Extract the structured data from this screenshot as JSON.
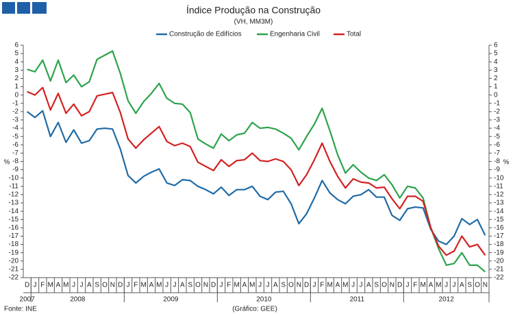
{
  "chart_data": {
    "type": "line",
    "title": "Índice Produção na Construção",
    "subtitle": "(VH, MM3M)",
    "ylabel": "%",
    "source": "Fonte: INE",
    "credit": "(Gráfico: GEE)",
    "categories": [
      "D",
      "J",
      "F",
      "M",
      "A",
      "M",
      "J",
      "J",
      "A",
      "S",
      "O",
      "N",
      "D",
      "J",
      "F",
      "M",
      "A",
      "M",
      "J",
      "J",
      "A",
      "S",
      "O",
      "N",
      "D",
      "J",
      "F",
      "M",
      "A",
      "M",
      "J",
      "J",
      "A",
      "S",
      "O",
      "N",
      "D",
      "J",
      "F",
      "M",
      "A",
      "M",
      "J",
      "J",
      "A",
      "S",
      "O",
      "N",
      "D",
      "J",
      "F",
      "M",
      "A",
      "M",
      "J",
      "J",
      "A",
      "S",
      "O",
      "N"
    ],
    "category_groups": [
      {
        "label": "2007",
        "size": 1
      },
      {
        "label": "2008",
        "size": 12
      },
      {
        "label": "2009",
        "size": 12
      },
      {
        "label": "2010",
        "size": 12
      },
      {
        "label": "2011",
        "size": 12
      },
      {
        "label": "2012",
        "size": 11
      }
    ],
    "series": [
      {
        "name": "Construção de Edifícios",
        "color": "#1f6aa5",
        "values": [
          -2,
          -2.7,
          -1.9,
          -5,
          -3.3,
          -5.7,
          -4.2,
          -5.8,
          -5.5,
          -4.1,
          -4,
          -4.1,
          -6.5,
          -9.7,
          -10.6,
          -9.8,
          -9.3,
          -8.9,
          -10.6,
          -10.9,
          -10.2,
          -10.3,
          -11,
          -11.4,
          -11.9,
          -11.1,
          -12.1,
          -11.4,
          -11.4,
          -11,
          -12.2,
          -12.6,
          -11.7,
          -11.6,
          -13.1,
          -15.5,
          -14.3,
          -12.4,
          -10.3,
          -11.8,
          -12.6,
          -13.1,
          -12.2,
          -12,
          -11.4,
          -12.3,
          -12.3,
          -14.5,
          -15.1,
          -13.7,
          -13.5,
          -13.6,
          -16.2,
          -17.6,
          -18,
          -17,
          -14.9,
          -15.6,
          -15,
          -16.9
        ]
      },
      {
        "name": "Engenharia Civil",
        "color": "#2ca24c",
        "values": [
          3.1,
          2.8,
          4.2,
          1.7,
          4.2,
          1.5,
          2.4,
          1,
          1.6,
          4.3,
          4.8,
          5.3,
          2.6,
          -0.7,
          -2.2,
          -0.8,
          0.2,
          1.4,
          -0.4,
          -1,
          -1.1,
          -2.1,
          -5.3,
          -5.9,
          -6.4,
          -4.7,
          -5.5,
          -4.8,
          -4.6,
          -3.3,
          -4,
          -3.9,
          -4.1,
          -4.6,
          -5.2,
          -6.6,
          -5,
          -3.5,
          -1.6,
          -4.3,
          -7.2,
          -9.4,
          -8.4,
          -9.3,
          -10,
          -10.3,
          -9.6,
          -10.8,
          -12.4,
          -11,
          -11.2,
          -12.4,
          -16,
          -18.5,
          -20.5,
          -20.3,
          -19,
          -20.5,
          -20.5,
          -21.3
        ]
      },
      {
        "name": "Total",
        "color": "#d42020",
        "values": [
          0.4,
          0,
          0.9,
          -1.8,
          0.2,
          -2.2,
          -1.1,
          -2.5,
          -2,
          -0.1,
          0.1,
          0.3,
          -2.1,
          -5.3,
          -6.4,
          -5.4,
          -4.6,
          -3.8,
          -5.6,
          -6.1,
          -5.8,
          -6.2,
          -8.1,
          -8.6,
          -9.1,
          -7.8,
          -8.6,
          -7.9,
          -7.8,
          -7,
          -7.9,
          -8,
          -7.7,
          -8,
          -9,
          -10.9,
          -9.6,
          -7.8,
          -5.8,
          -8,
          -9.8,
          -11.2,
          -10.1,
          -10.5,
          -10.6,
          -11.2,
          -11.1,
          -12.5,
          -13.7,
          -12.2,
          -12.2,
          -12.8,
          -16,
          -18.2,
          -19.3,
          -18.8,
          -17,
          -18.3,
          -18,
          -19.3
        ]
      }
    ],
    "ylim": [
      -22,
      6
    ],
    "yticks": [
      -22,
      -21,
      -20,
      -19,
      -18,
      -17,
      -16,
      -15,
      -14,
      -13,
      -12,
      -11,
      -10,
      -9,
      -8,
      -7,
      -6,
      -5,
      -4,
      -3,
      -2,
      -1,
      0,
      1,
      2,
      3,
      4,
      5,
      6
    ],
    "grid": false
  }
}
